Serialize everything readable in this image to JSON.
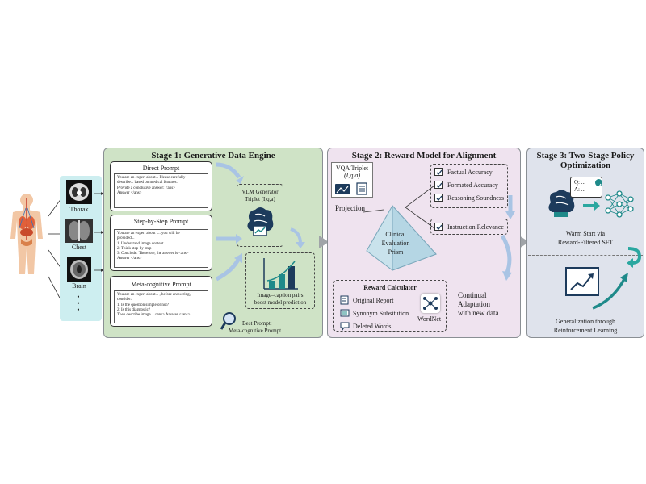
{
  "organs": [
    "Thorax",
    "Chest",
    "Brain"
  ],
  "organs_more": "•\n•\n•",
  "stage1": {
    "title": "Stage 1: Generative Data Engine",
    "cards": [
      {
        "title": "Direct Prompt",
        "lines": [
          "You are an expert about... Please carefully",
          "describe... based on medical features.",
          "Provide a conclusive answer: <ans>",
          "Answer </ans>"
        ]
      },
      {
        "title": "Step-by-Step Prompt",
        "lines": [
          "You are an expert about .... you will be",
          "provided...",
          "1. Understand image content",
          "2. Think step-by-step",
          "3. Conclude: Therefore, the answer is <ans>",
          "Answer </ans>"
        ]
      },
      {
        "title": "Meta-cognitive Prompt",
        "lines": [
          "You are an expert about... , before answering,",
          "consider:",
          "1. Is the question simple or not?",
          "2. Is this diagnostic?",
          "Then describe image... <ans> Answer </ans>"
        ]
      }
    ],
    "vlm_label1": "VLM Generator",
    "vlm_label2": "Triplet (I,q,a)",
    "pairs_label1": "Image–caption pairs",
    "pairs_label2": "boost model prediction",
    "best_prompt1": "Best Prompt:",
    "best_prompt2": "Meta-cognitive Prompt"
  },
  "stage2": {
    "title": "Stage 2: Reward Model for Alignment",
    "vqa_label1": "VQA Triplet",
    "vqa_label2": "(I,q,a)",
    "projection": "Projection",
    "prism1": "Clinical",
    "prism2": "Evaluation",
    "prism3": "Prism",
    "checks": [
      "Factual Accuracy",
      "Formated Accuracy",
      "Reasoning Soundness"
    ],
    "instruction": "Instruction Relevance",
    "reward_title": "Reward Calculator",
    "reward_items": [
      "Original Report",
      "Synonym Subsitution",
      "Deleted Words"
    ],
    "wordnet": "WordNet",
    "continual1": "Continual",
    "continual2": "Adaptation",
    "continual3": "with new data"
  },
  "stage3": {
    "title1": "Stage 3: Two-Stage Policy",
    "title2": "Optimization",
    "qa_q": "Q: ...",
    "qa_a": "A: ...",
    "warm1": "Warm Start via",
    "warm2": "Reward-Filtered SFT",
    "gen1": "Generalization through",
    "gen2": "Reinforcement Learning"
  },
  "colors": {
    "stage1_bg": "#cfe3c6",
    "stage2_bg": "#efe3ef",
    "stage3_bg": "#dfe3ec",
    "organs_bg": "#cdeef0",
    "teal": "#1f8a8a",
    "navy": "#1d3b5c",
    "arrow_blue": "#a9c4e4"
  }
}
